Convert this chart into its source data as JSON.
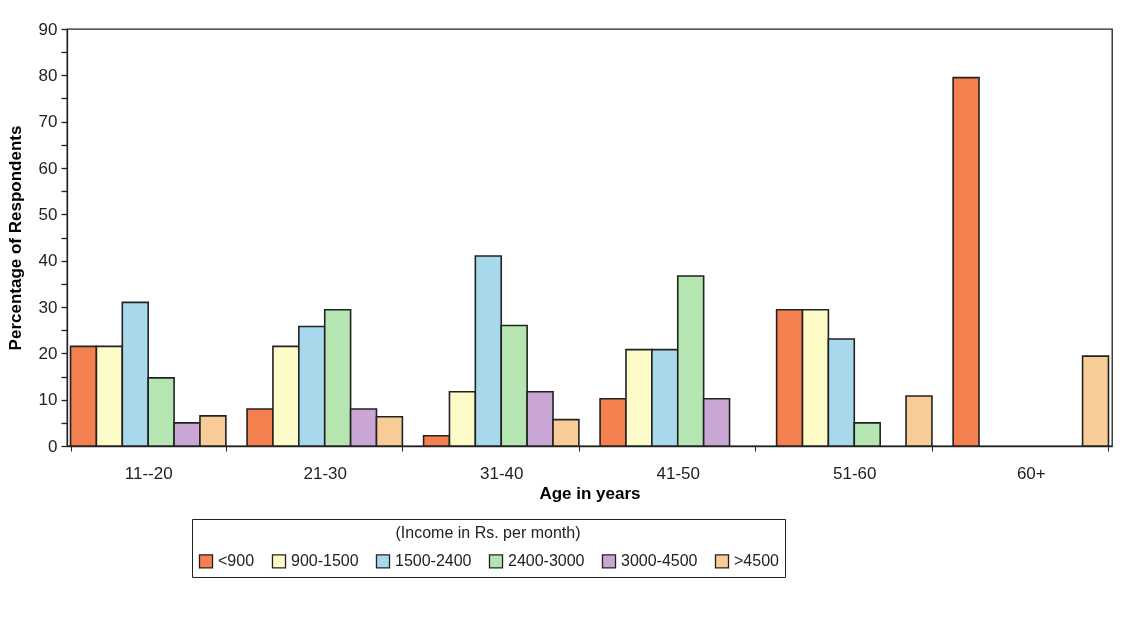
{
  "chart_data": {
    "type": "bar",
    "xlabel": "Age in years",
    "ylabel": "Percentage of Respondents",
    "legend_title": "(Income in Rs. per month)",
    "legend": "bottom",
    "categories": [
      "11--20",
      "21-30",
      "31-40",
      "41-50",
      "51-60",
      "60+"
    ],
    "series": [
      {
        "name": "<900",
        "color": "#f4804f",
        "values": [
          21.5,
          8,
          2.2,
          10.2,
          29.4,
          79.5
        ]
      },
      {
        "name": "900-1500",
        "color": "#fdfbc8",
        "values": [
          21.5,
          21.5,
          11.7,
          20.8,
          29.4,
          null
        ]
      },
      {
        "name": "1500-2400",
        "color": "#a8d8ec",
        "values": [
          31,
          25.8,
          41,
          20.8,
          23.1,
          null
        ]
      },
      {
        "name": "2400-3000",
        "color": "#b5e5b0",
        "values": [
          14.7,
          29.4,
          26,
          36.7,
          5,
          null
        ]
      },
      {
        "name": "3000-4500",
        "color": "#c9a6d4",
        "values": [
          5,
          8,
          11.7,
          10.2,
          null,
          null
        ]
      },
      {
        "name": ">4500",
        "color": "#f8cc96",
        "values": [
          6.5,
          6.3,
          5.7,
          null,
          10.8,
          19.4
        ]
      }
    ],
    "ylim": [
      0,
      90
    ],
    "yticks": [
      0,
      {
        "value": 5,
        "label": null
      },
      10,
      {
        "value": 15,
        "label": null
      },
      20,
      {
        "value": 25,
        "label": null
      },
      30,
      {
        "value": 35,
        "label": null
      },
      40,
      {
        "value": 45,
        "label": null
      },
      50,
      {
        "value": 55,
        "label": null
      },
      60,
      {
        "value": 65,
        "label": null
      },
      70,
      {
        "value": 75,
        "label": null
      },
      80,
      {
        "value": 85,
        "label": null
      },
      90
    ],
    "grid": false
  }
}
